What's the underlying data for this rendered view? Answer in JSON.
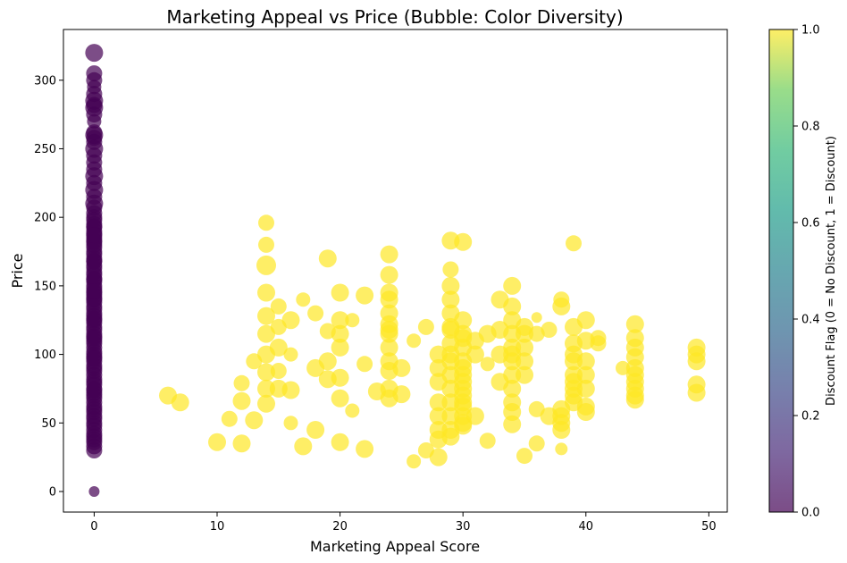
{
  "chart_data": {
    "type": "scatter",
    "title": "Marketing Appeal vs Price (Bubble: Color Diversity)",
    "xlabel": "Marketing Appeal Score",
    "ylabel": "Price",
    "xlim": [
      -2.5,
      51.5
    ],
    "ylim": [
      -15,
      337
    ],
    "xticks": [
      0,
      10,
      20,
      30,
      40,
      50
    ],
    "yticks": [
      0,
      50,
      100,
      150,
      200,
      250,
      300
    ],
    "grid": false,
    "colorbar": {
      "label": "Discount Flag (0 = No Discount, 1 = Discount)",
      "range": [
        0,
        1
      ],
      "ticks": [
        "0.0",
        "0.2",
        "0.4",
        "0.6",
        "0.8",
        "1.0"
      ],
      "colormap": "viridis"
    },
    "colors": {
      "no_discount": "#440154",
      "discount": "#fde725"
    },
    "series": [
      {
        "discount_flag": 0,
        "x": [
          0,
          0,
          0,
          0,
          0,
          0,
          0,
          0,
          0,
          0,
          0,
          0,
          0,
          0,
          0,
          0,
          0,
          0,
          0,
          0,
          0,
          0,
          0,
          0,
          0,
          0,
          0,
          0,
          0,
          0,
          0,
          0,
          0,
          0,
          0,
          0,
          0,
          0,
          0,
          0,
          0,
          0,
          0,
          0,
          0,
          0,
          0,
          0,
          0,
          0,
          0,
          0,
          0,
          0,
          0,
          0,
          0,
          0,
          0,
          0,
          0,
          0,
          0,
          0,
          0,
          0,
          0,
          0,
          0,
          0,
          0,
          0,
          0,
          0,
          0,
          0,
          0,
          0,
          0,
          0,
          0,
          0,
          0,
          0,
          0,
          0,
          0,
          0,
          0,
          0,
          0,
          0,
          0,
          0,
          0,
          0,
          0,
          0,
          0,
          0,
          0,
          0,
          0,
          0,
          0,
          0
        ],
        "y": [
          0,
          30,
          33,
          36,
          38,
          40,
          42,
          45,
          48,
          50,
          53,
          55,
          58,
          60,
          62,
          65,
          68,
          70,
          72,
          75,
          78,
          80,
          82,
          85,
          88,
          90,
          92,
          95,
          98,
          100,
          102,
          105,
          108,
          110,
          113,
          115,
          118,
          120,
          123,
          125,
          128,
          130,
          133,
          135,
          138,
          140,
          143,
          145,
          148,
          150,
          153,
          155,
          158,
          160,
          163,
          165,
          168,
          170,
          173,
          175,
          178,
          180,
          183,
          185,
          188,
          190,
          193,
          195,
          198,
          200,
          203,
          207,
          210,
          215,
          220,
          225,
          230,
          235,
          240,
          245,
          250,
          255,
          258,
          260,
          262,
          270,
          275,
          280,
          282,
          285,
          290,
          295,
          300,
          305,
          320,
          97,
          112,
          126,
          141,
          155,
          168,
          182,
          193,
          187,
          146,
          74
        ],
        "size": [
          6,
          9,
          9,
          9,
          9,
          9,
          9,
          9,
          9,
          9,
          9,
          9,
          9,
          9,
          9,
          9,
          9,
          9,
          9,
          9,
          9,
          9,
          9,
          9,
          9,
          9,
          9,
          9,
          9,
          9,
          9,
          9,
          9,
          9,
          9,
          9,
          9,
          9,
          9,
          9,
          9,
          9,
          9,
          9,
          9,
          9,
          9,
          9,
          9,
          9,
          9,
          9,
          9,
          9,
          9,
          9,
          9,
          9,
          9,
          9,
          9,
          9,
          9,
          9,
          9,
          9,
          9,
          9,
          9,
          9,
          9,
          9,
          10,
          9,
          10,
          9,
          10,
          9,
          9,
          9,
          10,
          9,
          9,
          10,
          9,
          8,
          9,
          10,
          9,
          10,
          9,
          8,
          9,
          9,
          10,
          9,
          9,
          9,
          9,
          9,
          9,
          9,
          9,
          9,
          9,
          9
        ]
      },
      {
        "discount_flag": 1,
        "x": [
          6,
          7,
          10,
          11,
          12,
          12,
          12,
          13,
          13,
          14,
          14,
          14,
          14,
          14,
          14,
          14,
          14,
          14,
          14,
          15,
          15,
          15,
          15,
          15,
          16,
          16,
          16,
          16,
          17,
          17,
          18,
          18,
          18,
          19,
          19,
          19,
          19,
          20,
          20,
          20,
          20,
          20,
          20,
          20,
          21,
          21,
          22,
          22,
          22,
          23,
          24,
          24,
          24,
          24,
          24,
          24,
          24,
          24,
          24,
          24,
          24,
          24,
          24,
          25,
          25,
          26,
          26,
          27,
          27,
          28,
          28,
          28,
          28,
          28,
          28,
          28,
          28,
          29,
          29,
          29,
          29,
          29,
          29,
          29,
          29,
          29,
          29,
          29,
          29,
          29,
          29,
          29,
          29,
          30,
          30,
          30,
          30,
          30,
          30,
          30,
          30,
          30,
          30,
          30,
          30,
          30,
          30,
          30,
          30,
          31,
          31,
          31,
          32,
          32,
          32,
          33,
          33,
          33,
          33,
          34,
          34,
          34,
          34,
          34,
          34,
          34,
          34,
          34,
          34,
          34,
          34,
          35,
          35,
          35,
          35,
          35,
          35,
          36,
          36,
          36,
          36,
          37,
          37,
          38,
          38,
          38,
          38,
          38,
          38,
          38,
          39,
          39,
          39,
          39,
          39,
          39,
          39,
          39,
          39,
          39,
          40,
          40,
          40,
          40,
          40,
          40,
          40,
          41,
          41,
          43,
          44,
          44,
          44,
          44,
          44,
          44,
          44,
          44,
          44,
          44,
          49,
          49,
          49,
          49,
          49
        ],
        "y": [
          70,
          65,
          36,
          53,
          79,
          66,
          35,
          95,
          52,
          196,
          180,
          165,
          145,
          128,
          115,
          100,
          87,
          75,
          64,
          135,
          120,
          105,
          88,
          75,
          125,
          100,
          74,
          50,
          140,
          33,
          130,
          90,
          45,
          170,
          117,
          95,
          82,
          145,
          125,
          105,
          83,
          68,
          36,
          115,
          125,
          59,
          143,
          93,
          31,
          73,
          173,
          158,
          145,
          130,
          118,
          105,
          95,
          88,
          75,
          68,
          115,
          122,
          140,
          90,
          71,
          110,
          22,
          120,
          30,
          100,
          90,
          80,
          65,
          55,
          45,
          38,
          25,
          183,
          162,
          150,
          140,
          130,
          118,
          108,
          95,
          85,
          75,
          65,
          55,
          45,
          40,
          100,
          120,
          182,
          125,
          115,
          105,
          95,
          85,
          75,
          65,
          55,
          48,
          112,
          90,
          80,
          70,
          62,
          50,
          110,
          100,
          55,
          115,
          93,
          37,
          140,
          118,
          100,
          80,
          150,
          135,
          125,
          115,
          105,
          95,
          85,
          75,
          65,
          58,
          49,
          100,
          120,
          115,
          105,
          95,
          85,
          26,
          35,
          60,
          127,
          115,
          118,
          55,
          135,
          140,
          60,
          55,
          50,
          45,
          31,
          181,
          120,
          108,
          100,
          95,
          85,
          80,
          75,
          70,
          65,
          125,
          110,
          95,
          85,
          75,
          62,
          58,
          112,
          108,
          90,
          122,
          112,
          105,
          98,
          90,
          85,
          80,
          75,
          70,
          67,
          105,
          100,
          95,
          78,
          72
        ],
        "size": [
          10,
          10,
          10,
          9,
          9,
          10,
          10,
          9,
          10,
          9,
          9,
          11,
          10,
          10,
          10,
          10,
          10,
          10,
          10,
          9,
          9,
          10,
          9,
          10,
          10,
          8,
          10,
          8,
          8,
          10,
          9,
          10,
          10,
          10,
          9,
          10,
          10,
          10,
          10,
          10,
          10,
          10,
          10,
          10,
          8,
          8,
          10,
          9,
          10,
          10,
          10,
          10,
          10,
          10,
          10,
          10,
          10,
          10,
          10,
          10,
          10,
          10,
          10,
          10,
          10,
          8,
          8,
          9,
          9,
          10,
          10,
          10,
          10,
          10,
          10,
          10,
          10,
          10,
          9,
          10,
          10,
          10,
          10,
          10,
          10,
          10,
          10,
          10,
          10,
          10,
          10,
          10,
          10,
          10,
          10,
          10,
          10,
          10,
          10,
          10,
          10,
          10,
          10,
          10,
          10,
          10,
          10,
          10,
          10,
          10,
          10,
          10,
          10,
          8,
          9,
          10,
          10,
          10,
          10,
          10,
          10,
          10,
          10,
          10,
          10,
          10,
          10,
          10,
          10,
          10,
          10,
          10,
          10,
          10,
          10,
          10,
          9,
          9,
          9,
          6,
          9,
          9,
          10,
          10,
          9,
          10,
          10,
          10,
          10,
          7,
          9,
          10,
          10,
          10,
          10,
          10,
          10,
          10,
          10,
          10,
          10,
          10,
          10,
          10,
          10,
          10,
          10,
          9,
          9,
          8,
          10,
          10,
          10,
          10,
          10,
          10,
          10,
          10,
          10,
          10,
          10,
          10,
          10,
          10,
          10
        ]
      }
    ]
  }
}
